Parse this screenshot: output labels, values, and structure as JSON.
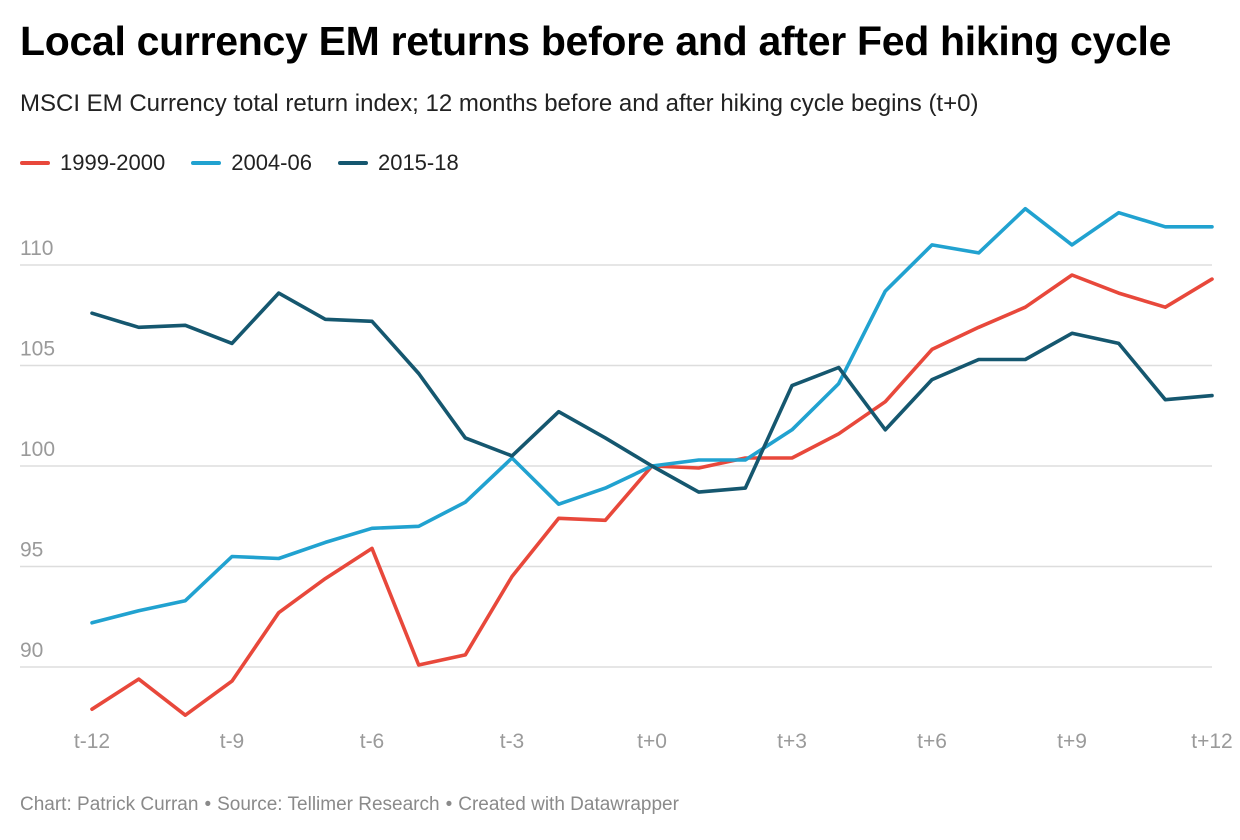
{
  "title": "Local currency EM returns before and after Fed hiking cycle",
  "subtitle": "MSCI EM Currency total return index; 12 months before and after hiking cycle begins (t+0)",
  "footer": {
    "chart_by": "Chart: Patrick Curran",
    "source": "Source: Tellimer Research",
    "created": "Created with Datawrapper",
    "separator": "•"
  },
  "colors": {
    "1999-2000": "#e8483b",
    "2004-06": "#21a2d0",
    "2015-18": "#15576f",
    "grid": "#dddddd",
    "axis_text": "#9a9a9a"
  },
  "chart_data": {
    "type": "line",
    "x": [
      "t-12",
      "t-11",
      "t-10",
      "t-9",
      "t-8",
      "t-7",
      "t-6",
      "t-5",
      "t-4",
      "t-3",
      "t-2",
      "t-1",
      "t+0",
      "t+1",
      "t+2",
      "t+3",
      "t+4",
      "t+5",
      "t+6",
      "t+7",
      "t+8",
      "t+9",
      "t+10",
      "t+11",
      "t+12"
    ],
    "x_tick_labels": [
      "t-12",
      "t-9",
      "t-6",
      "t-3",
      "t+0",
      "t+3",
      "t+6",
      "t+9",
      "t+12"
    ],
    "y_ticks": [
      90,
      95,
      100,
      105,
      110
    ],
    "ylim": [
      87,
      113
    ],
    "grid": "horizontal",
    "legend_position": "top-left",
    "series": [
      {
        "name": "1999-2000",
        "color": "#e8483b",
        "values": [
          87.9,
          89.4,
          87.6,
          89.3,
          92.7,
          94.4,
          95.9,
          90.1,
          90.6,
          94.5,
          97.4,
          97.3,
          100.0,
          99.9,
          100.4,
          100.4,
          101.6,
          103.2,
          105.8,
          106.9,
          107.9,
          109.5,
          108.6,
          107.9,
          109.3
        ]
      },
      {
        "name": "2004-06",
        "color": "#21a2d0",
        "values": [
          92.2,
          92.8,
          93.3,
          95.5,
          95.4,
          96.2,
          96.9,
          97.0,
          98.2,
          100.4,
          98.1,
          98.9,
          100.0,
          100.3,
          100.3,
          101.8,
          104.1,
          108.7,
          111.0,
          110.6,
          112.8,
          111.0,
          112.6,
          111.9,
          111.9
        ]
      },
      {
        "name": "2015-18",
        "color": "#15576f",
        "values": [
          107.6,
          106.9,
          107.0,
          106.1,
          108.6,
          107.3,
          107.2,
          104.6,
          101.4,
          100.5,
          102.7,
          101.4,
          100.0,
          98.7,
          98.9,
          104.0,
          104.9,
          101.8,
          104.3,
          105.3,
          105.3,
          106.6,
          106.1,
          103.3,
          103.5
        ]
      }
    ]
  }
}
